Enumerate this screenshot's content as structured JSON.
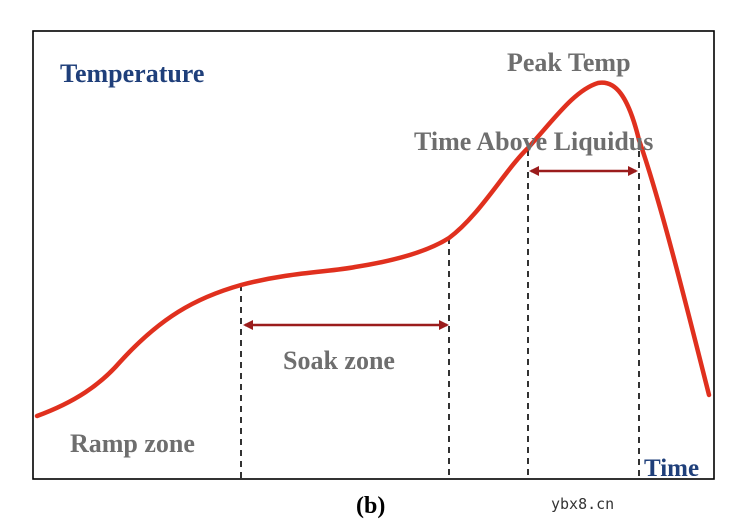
{
  "diagram": {
    "title_y": "Temperature",
    "title_x": "Time",
    "zones": {
      "ramp": "Ramp zone",
      "soak": "Soak zone",
      "peak": "Peak Temp",
      "tal": "Time Above Liquidus"
    },
    "caption": "(b)",
    "watermark": "ybx8.cn"
  },
  "colors": {
    "curve": "#e0301e",
    "arrow": "#9b1c1c",
    "frame": "#000000",
    "gray_text": "#6e6e6e",
    "blue_text": "#1f3f7a"
  }
}
